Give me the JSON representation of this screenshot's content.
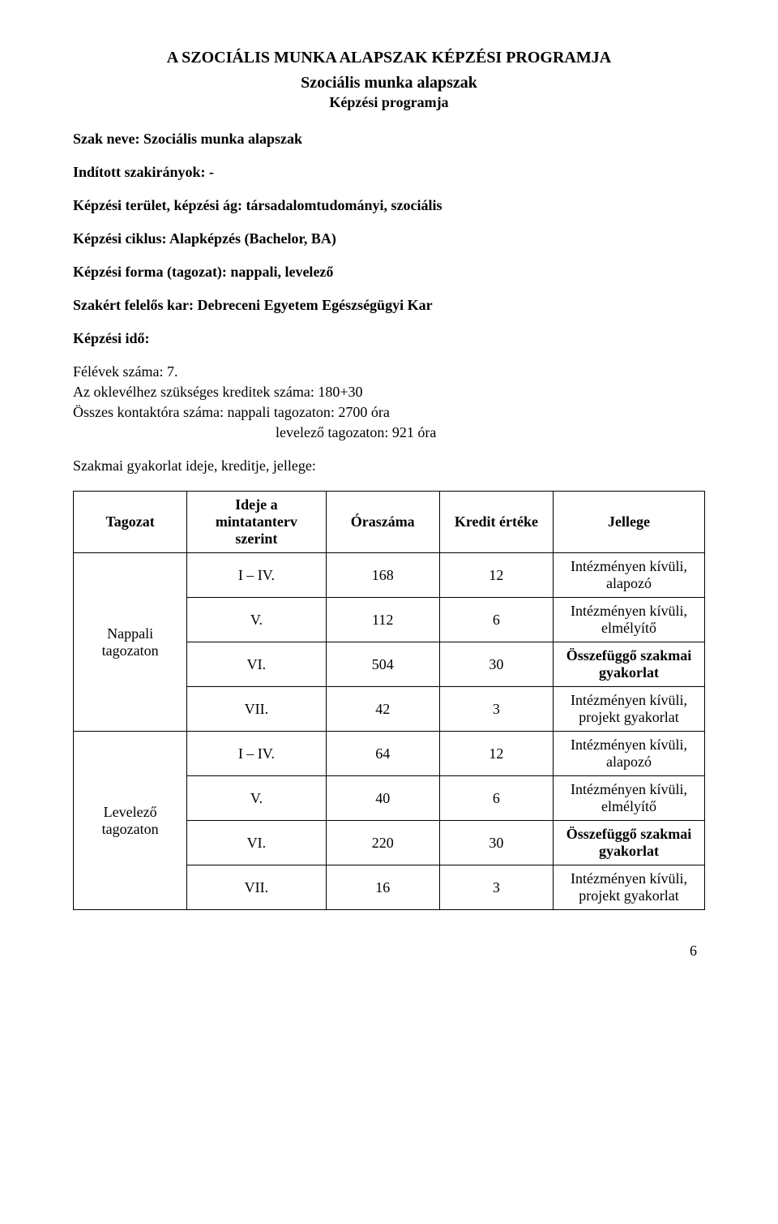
{
  "header": {
    "main_title": "A SZOCIÁLIS MUNKA ALAPSZAK KÉPZÉSI PROGRAMJA",
    "subtitle_1": "Szociális munka alapszak",
    "subtitle_2": "Képzési programja"
  },
  "fields": {
    "szak_neve": "Szak neve: Szociális munka alapszak",
    "inditott": "Indított szakirányok: -",
    "kepzesi_terulet": "Képzési terület, képzési ág: társadalomtudományi, szociális",
    "kepzesi_ciklus": "Képzési ciklus: Alapképzés (Bachelor, BA)",
    "kepzesi_forma": "Képzési forma (tagozat): nappali, levelező",
    "szakert_felelos": "Szakért felelős kar: Debreceni Egyetem Egészségügyi Kar",
    "kepzesi_ido": "Képzési idő:",
    "felevek": "Félévek száma: 7.",
    "kreditek": "Az oklevélhez szükséges kreditek száma: 180+30",
    "osszes_line1": "Összes kontaktóra száma:  nappali tagozaton:   2700 óra",
    "osszes_line2": "levelező tagozaton: 921 óra",
    "szakmai_gyak": "Szakmai gyakorlat ideje, kreditje, jellege:"
  },
  "table": {
    "headers": {
      "tagozat": "Tagozat",
      "ideje": "Ideje a mintatanterv szerint",
      "oraszam": "Óraszáma",
      "kredit": "Kredit értéke",
      "jellege": "Jellege"
    },
    "groups": [
      {
        "label": "Nappali tagozaton",
        "rows": [
          {
            "ideje": "I – IV.",
            "ora": "168",
            "kredit": "12",
            "jellege": "Intézményen kívüli, alapozó"
          },
          {
            "ideje": "V.",
            "ora": "112",
            "kredit": "6",
            "jellege": "Intézményen kívüli, elmélyítő"
          },
          {
            "ideje": "VI.",
            "ora": "504",
            "kredit": "30",
            "jellege": "Összefüggő szakmai gyakorlat"
          },
          {
            "ideje": "VII.",
            "ora": "42",
            "kredit": "3",
            "jellege": "Intézményen kívüli, projekt gyakorlat"
          }
        ]
      },
      {
        "label": "Levelező tagozaton",
        "rows": [
          {
            "ideje": "I – IV.",
            "ora": "64",
            "kredit": "12",
            "jellege": "Intézményen kívüli, alapozó"
          },
          {
            "ideje": "V.",
            "ora": "40",
            "kredit": "6",
            "jellege": "Intézményen kívüli, elmélyítő"
          },
          {
            "ideje": "VI.",
            "ora": "220",
            "kredit": "30",
            "jellege": "Összefüggő szakmai gyakorlat"
          },
          {
            "ideje": "VII.",
            "ora": "16",
            "kredit": "3",
            "jellege": "Intézményen kívüli, projekt gyakorlat"
          }
        ]
      }
    ]
  },
  "bold_jellege_text": "Összefüggő szakmai gyakorlat",
  "page_number": "6"
}
